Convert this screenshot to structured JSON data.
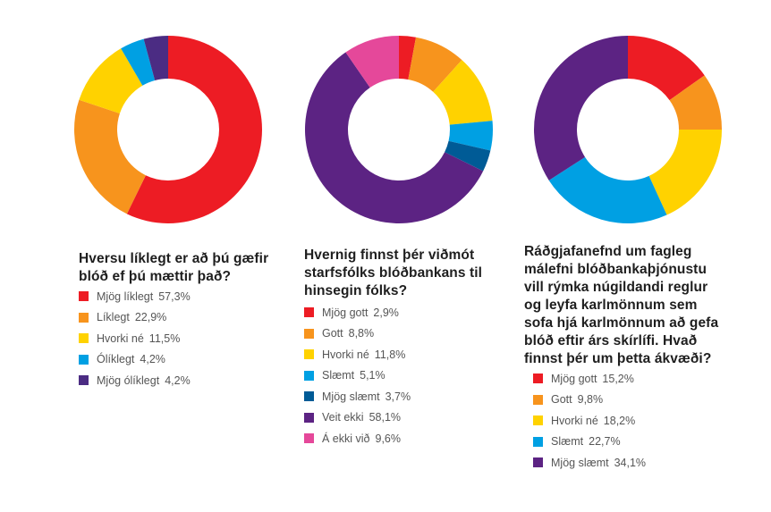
{
  "chart_data": [
    {
      "type": "pie",
      "title": "Hversu líklegt er að þú gæfir blóð ef þú mættir það?",
      "categories": [
        "Mjög líklegt",
        "Líklegt",
        "Hvorki né",
        "Ólíklegt",
        "Mjög ólíklegt"
      ],
      "values": [
        57.3,
        22.9,
        11.5,
        4.2,
        4.2
      ],
      "value_labels": [
        "57,3%",
        "22,9%",
        "11,5%",
        "4,2%",
        "4,2%"
      ],
      "colors": [
        "#ed1c24",
        "#f7941d",
        "#ffd200",
        "#00a0e3",
        "#4b2c83"
      ],
      "display_order": [
        0,
        1,
        2,
        3,
        4
      ],
      "title_lines": [
        "Hversu líklegt er að þú gæfir",
        "blóð ef þú mættir það?"
      ]
    },
    {
      "type": "pie",
      "title": "Hvernig finnst þér viðmót starfsfólks blóðbankans til hinsegin fólks?",
      "categories": [
        "Mjög gott",
        "Gott",
        "Hvorki né",
        "Slæmt",
        "Mjög slæmt",
        "Veit ekki",
        "Á ekki við"
      ],
      "values": [
        2.9,
        8.8,
        11.8,
        5.1,
        3.7,
        58.1,
        9.6
      ],
      "value_labels": [
        "2,9%",
        "8,8%",
        "11,8%",
        "5,1%",
        "3,7%",
        "58,1%",
        "9,6%"
      ],
      "colors": [
        "#ed1c24",
        "#f7941d",
        "#ffd200",
        "#00a0e3",
        "#005b96",
        "#5c2383",
        "#e5489a"
      ],
      "display_order": [
        0,
        1,
        2,
        3,
        4,
        5,
        6
      ],
      "title_lines": [
        "Hvernig finnst þér viðmót",
        "starfsfólks blóðbankans til",
        "hinsegin fólks?"
      ]
    },
    {
      "type": "pie",
      "title": "Ráðgjafanefnd um fagleg málefni blóðbankaþjónustu vill rýmka núgildandi reglur og leyfa karlmönnum sem sofa hjá karlmönnum að gefa blóð eftir árs skírlífi. Hvað finnst þér um þetta ákvæði?",
      "categories": [
        "Mjög gott",
        "Gott",
        "Hvorki né",
        "Slæmt",
        "Mjög slæmt"
      ],
      "values": [
        15.2,
        9.8,
        18.2,
        22.7,
        34.1
      ],
      "value_labels": [
        "15,2%",
        "9,8%",
        "18,2%",
        "22,7%",
        "34,1%"
      ],
      "colors": [
        "#ed1c24",
        "#f7941d",
        "#ffd200",
        "#00a0e3",
        "#5c2383"
      ],
      "display_order": [
        0,
        1,
        2,
        3,
        4
      ],
      "title_lines": [
        "Ráðgjafanefnd um fagleg",
        "málefni blóðbankaþjónustu",
        "vill rýmka núgildandi reglur",
        "og leyfa karlmönnum sem",
        "sofa hjá karlmönnum að gefa",
        "blóð eftir árs skírlífi. Hvað",
        "finnst þér um þetta ákvæði?"
      ]
    }
  ]
}
